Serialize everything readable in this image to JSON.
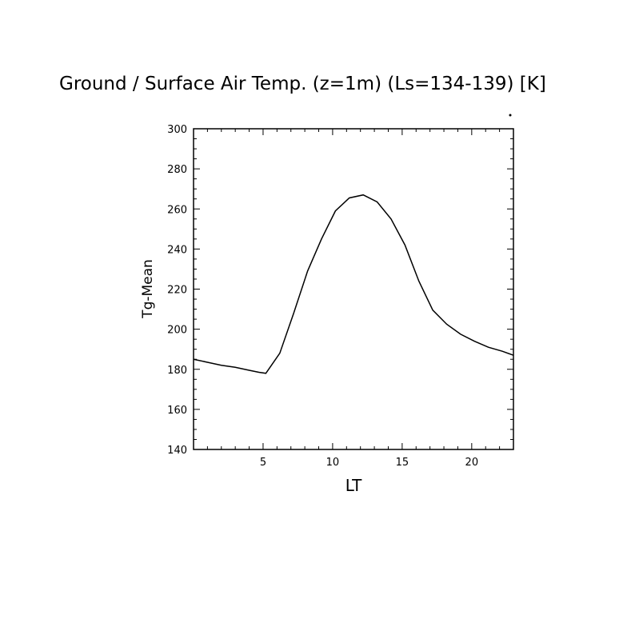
{
  "chart_data": {
    "type": "line",
    "title": "Ground / Surface Air Temp. (z=1m) (Ls=134-139) [K]",
    "xlabel": "LT",
    "ylabel": "Tg-Mean",
    "xlim": [
      0,
      23
    ],
    "ylim": [
      140,
      300
    ],
    "x_ticks": [
      5,
      10,
      15,
      20
    ],
    "y_ticks": [
      140,
      160,
      180,
      200,
      220,
      240,
      260,
      280,
      300
    ],
    "grid": false,
    "series": [
      {
        "x": [
          0,
          1,
          2,
          3,
          4,
          4.7,
          5.2,
          6.2,
          7.2,
          8.2,
          9.2,
          10.2,
          11.2,
          12.2,
          13.2,
          14.2,
          15.2,
          16.2,
          17.2,
          18.2,
          19.2,
          20.2,
          21.2,
          22.2,
          23
        ],
        "y": [
          185,
          183.5,
          182,
          181,
          179.5,
          178.5,
          178,
          188,
          208,
          229,
          245,
          259,
          265.5,
          267,
          263.5,
          255,
          242,
          224,
          209.5,
          202.5,
          197.5,
          194,
          191,
          189,
          187
        ]
      }
    ]
  }
}
